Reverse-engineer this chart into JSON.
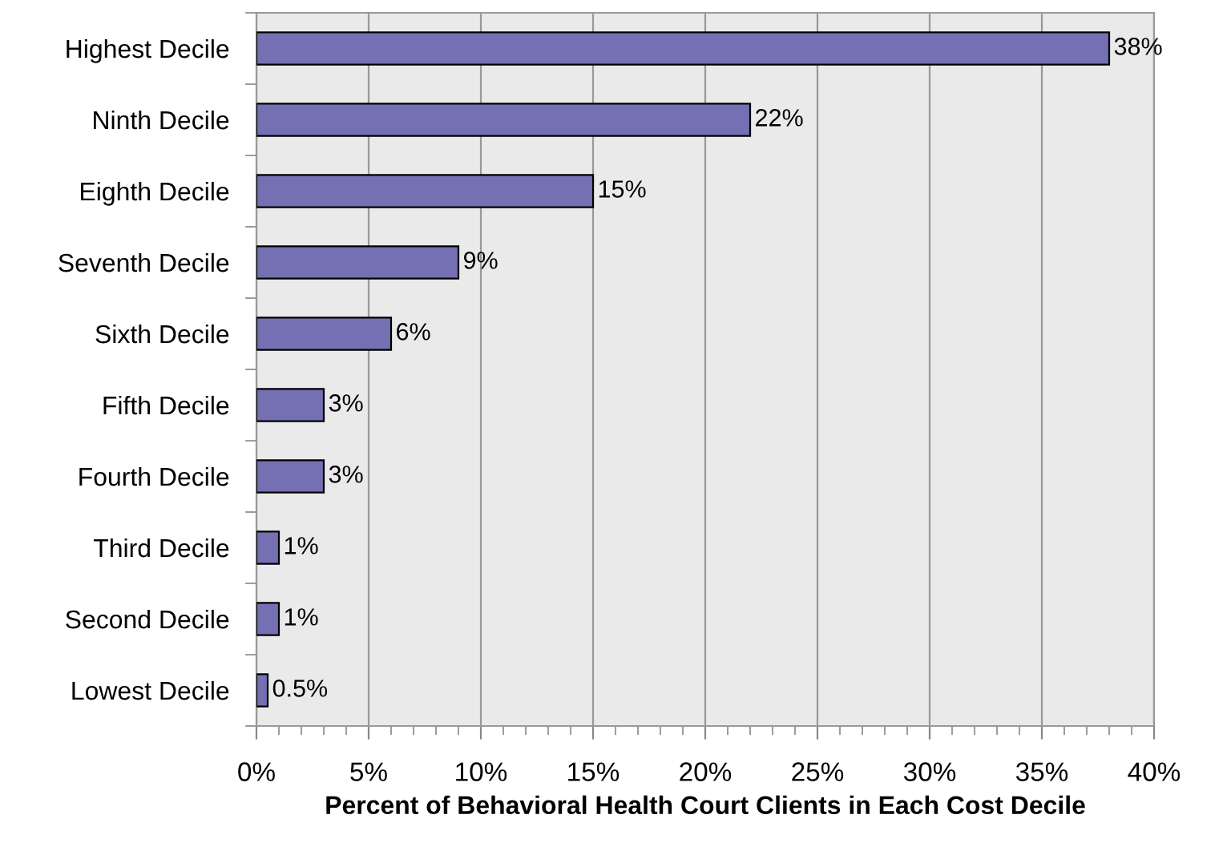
{
  "chart_data": {
    "type": "bar",
    "orientation": "horizontal",
    "xlabel": "Percent of Behavioral Health Court Clients in Each Cost Decile",
    "categories": [
      "Highest Decile",
      "Ninth Decile",
      "Eighth Decile",
      "Seventh Decile",
      "Sixth Decile",
      "Fifth Decile",
      "Fourth Decile",
      "Third Decile",
      "Second Decile",
      "Lowest Decile"
    ],
    "values": [
      38,
      22,
      15,
      9,
      6,
      3,
      3,
      1,
      1,
      0.5
    ],
    "value_labels": [
      "38%",
      "22%",
      "15%",
      "9%",
      "6%",
      "3%",
      "3%",
      "1%",
      "1%",
      "0.5%"
    ],
    "color": "#7570b3",
    "xlim": [
      0,
      40
    ],
    "xticks": [
      {
        "value": 0,
        "label": "0%"
      },
      {
        "value": 5,
        "label": "5%"
      },
      {
        "value": 10,
        "label": "10%"
      },
      {
        "value": 15,
        "label": "15%"
      },
      {
        "value": 20,
        "label": "20%"
      },
      {
        "value": 25,
        "label": "25%"
      },
      {
        "value": 30,
        "label": "30%"
      },
      {
        "value": 35,
        "label": "35%"
      },
      {
        "value": 40,
        "label": "40%"
      }
    ],
    "grid": "x",
    "legend": false
  }
}
